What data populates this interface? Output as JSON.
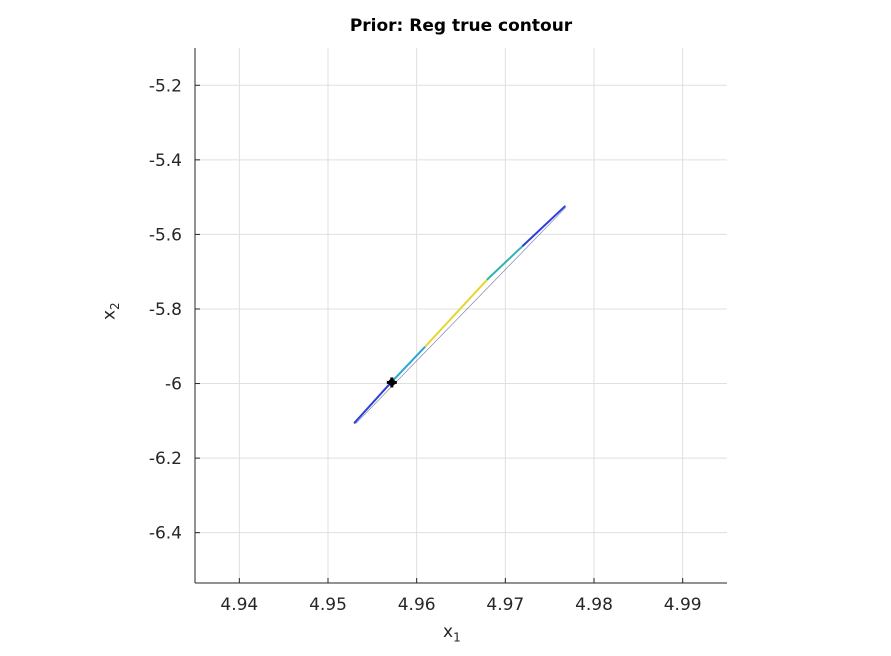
{
  "chart_data": {
    "type": "contour",
    "title": "Prior: Reg true contour",
    "xlabel": {
      "base": "x",
      "sub": "1"
    },
    "ylabel": {
      "base": "x",
      "sub": "2"
    },
    "xlim": [
      4.935,
      4.995
    ],
    "ylim": [
      -6.535,
      -5.1
    ],
    "xticks": [
      "4.94",
      "4.95",
      "4.96",
      "4.97",
      "4.98",
      "4.99"
    ],
    "xtick_values": [
      4.94,
      4.95,
      4.96,
      4.97,
      4.98,
      4.99
    ],
    "yticks": [
      "-5.2",
      "-5.4",
      "-5.6",
      "-5.8",
      "-6",
      "-6.2",
      "-6.4"
    ],
    "ytick_values": [
      -5.2,
      -5.4,
      -5.6,
      -5.8,
      -6.0,
      -6.2,
      -6.4
    ],
    "grid": true,
    "contour_segments": [
      {
        "x": [
          4.953,
          4.957
        ],
        "y": [
          -6.105,
          -6.0
        ],
        "color": "#2a3fd8"
      },
      {
        "x": [
          4.957,
          4.961
        ],
        "y": [
          -6.0,
          -5.9
        ],
        "color": "#27a6d8"
      },
      {
        "x": [
          4.961,
          4.968
        ],
        "y": [
          -5.9,
          -5.72
        ],
        "color": "#e6d62a"
      },
      {
        "x": [
          4.968,
          4.972
        ],
        "y": [
          -5.72,
          -5.63
        ],
        "color": "#2fb5b0"
      },
      {
        "x": [
          4.972,
          4.9767
        ],
        "y": [
          -5.63,
          -5.525
        ],
        "color": "#2a3fd8"
      }
    ],
    "marker": {
      "x": 4.9572,
      "y": -5.997,
      "color": "#000000"
    }
  }
}
